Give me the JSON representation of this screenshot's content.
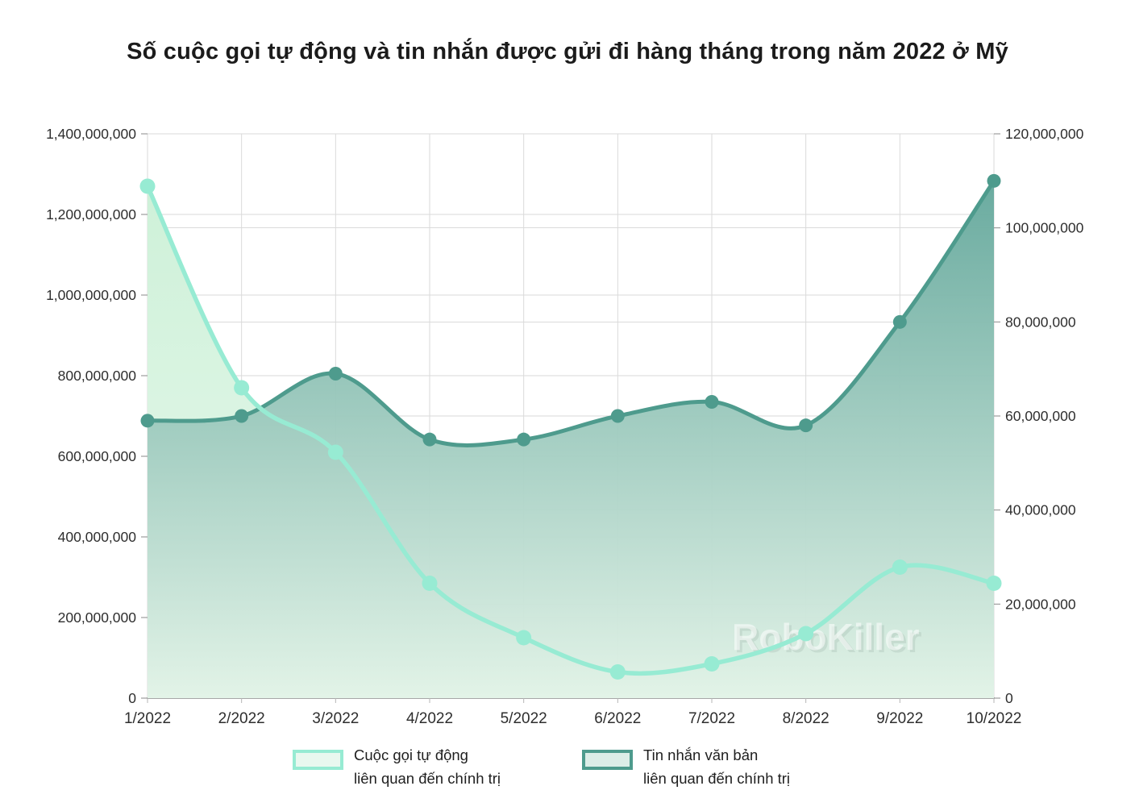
{
  "title": "Số cuộc gọi tự động và tin nhắn được gửi đi hàng tháng trong năm 2022 ở Mỹ",
  "watermark": "RoboKiller",
  "legend": {
    "items": [
      {
        "line1": "Cuộc gọi tự động",
        "line2": "liên quan đến chính trị"
      },
      {
        "line1": "Tin nhắn văn bản",
        "line2": "liên quan đến chính trị"
      }
    ]
  },
  "chart_data": {
    "type": "area",
    "title": "Số cuộc gọi tự động và tin nhắn được gửi đi hàng tháng trong năm 2022 ở Mỹ",
    "categories": [
      "1/2022",
      "2/2022",
      "3/2022",
      "4/2022",
      "5/2022",
      "6/2022",
      "7/2022",
      "8/2022",
      "9/2022",
      "10/2022"
    ],
    "series": [
      {
        "name": "Cuộc gọi tự động liên quan đến chính trị",
        "axis": "left",
        "values": [
          1270000000,
          770000000,
          610000000,
          285000000,
          150000000,
          65000000,
          85000000,
          160000000,
          325000000,
          285000000
        ],
        "line_color": "#97EBD3",
        "marker_color": "#97EBD3",
        "fill_top": "#CBF0D6",
        "fill_bottom": "#EAF9EF",
        "legend_fill": "#E9F8EF"
      },
      {
        "name": "Tin nhắn văn bản liên quan đến chính trị",
        "axis": "right",
        "values": [
          59000000,
          60000000,
          69000000,
          55000000,
          55000000,
          60000000,
          63000000,
          58000000,
          80000000,
          110000000
        ],
        "line_color": "#4E9B8D",
        "marker_color": "#4E9B8D",
        "fill_top": "#57A094",
        "fill_bottom": "#E2F3E7",
        "legend_fill": "#DCEDE7"
      }
    ],
    "left_axis": {
      "min": 0,
      "max": 1400000000,
      "step": 200000000
    },
    "right_axis": {
      "min": 0,
      "max": 120000000,
      "step": 20000000
    },
    "grid": true,
    "legend_position": "bottom"
  }
}
